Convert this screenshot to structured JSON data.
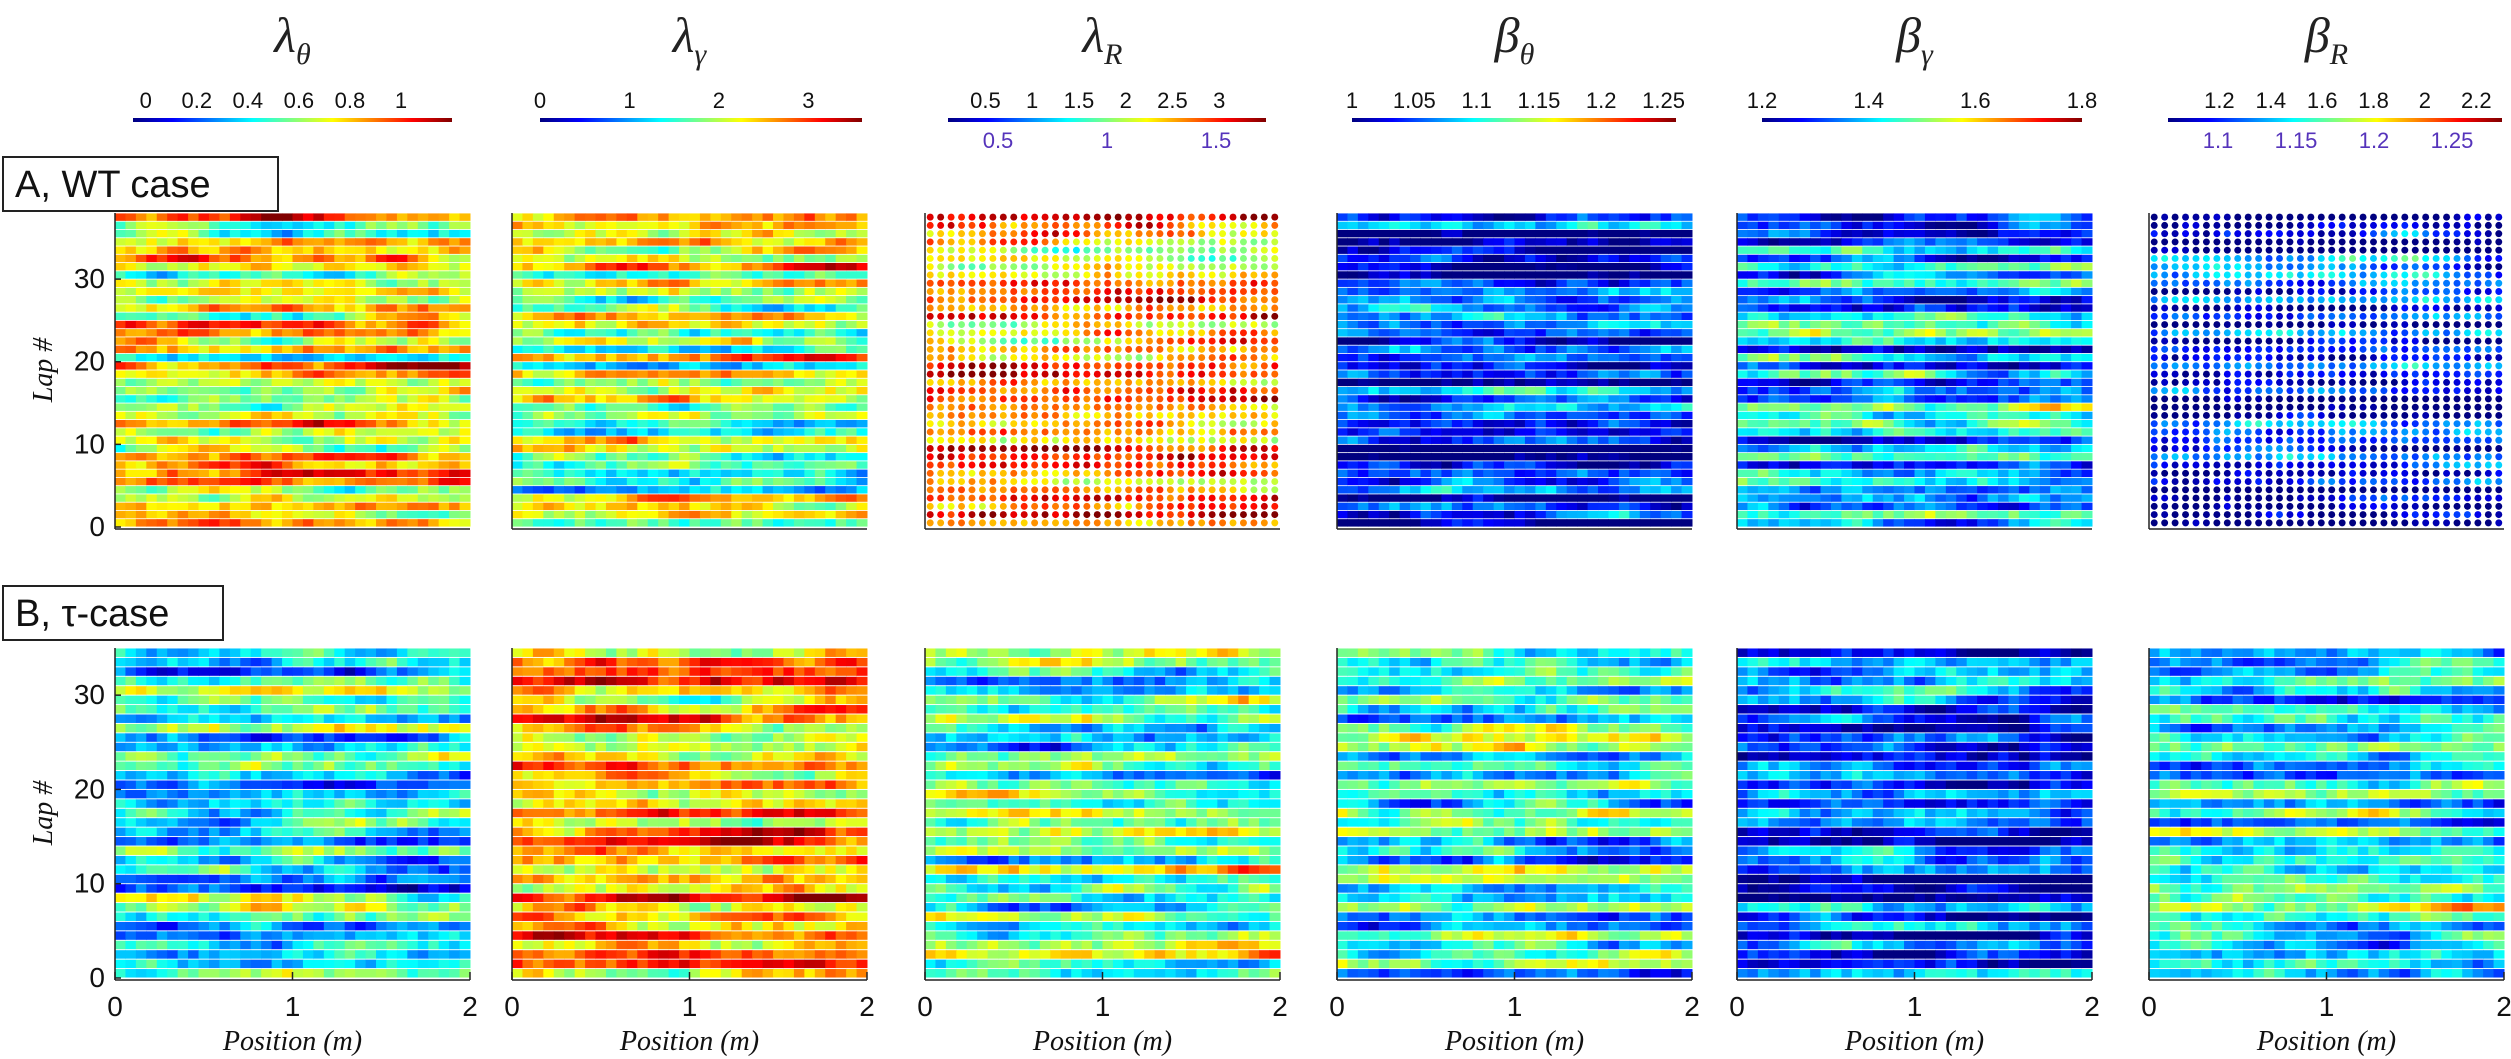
{
  "figure": {
    "row_labels": [
      "A, WT case",
      "B, τ-case"
    ],
    "x_axis_label": "Position (m)",
    "y_axis_label": "Lap #"
  },
  "chart_data": {
    "type": "heatmap",
    "colormap": "jet",
    "x_ticks": [
      "0",
      "1",
      "2"
    ],
    "xlim": [
      0,
      2
    ],
    "columns": [
      {
        "symbol": "λ",
        "subscript": "θ",
        "colorbar_ticks": [
          "0",
          "0.2",
          "0.4",
          "0.6",
          "0.8",
          "1"
        ],
        "colorbar_range": [
          -0.05,
          1.2
        ],
        "colorbar_ticks_secondary": []
      },
      {
        "symbol": "λ",
        "subscript": "γ",
        "colorbar_ticks": [
          "0",
          "1",
          "2",
          "3"
        ],
        "colorbar_range": [
          0,
          3.6
        ],
        "colorbar_ticks_secondary": []
      },
      {
        "symbol": "λ",
        "subscript": "R",
        "colorbar_ticks": [
          "0.5",
          "1",
          "1.5",
          "2",
          "2.5",
          "3"
        ],
        "colorbar_range": [
          0.1,
          3.5
        ],
        "colorbar_ticks_secondary": [
          "0.5",
          "1",
          "1.5"
        ]
      },
      {
        "symbol": "β",
        "subscript": "θ",
        "colorbar_ticks": [
          "1",
          "1.05",
          "1.1",
          "1.15",
          "1.2",
          "1.25"
        ],
        "colorbar_range": [
          1.0,
          1.26
        ],
        "colorbar_ticks_secondary": []
      },
      {
        "symbol": "β",
        "subscript": "γ",
        "colorbar_ticks": [
          "1.2",
          "1.4",
          "1.6",
          "1.8"
        ],
        "colorbar_range": [
          1.2,
          1.8
        ],
        "colorbar_ticks_secondary": []
      },
      {
        "symbol": "β",
        "subscript": "R",
        "colorbar_ticks": [
          "1.2",
          "1.4",
          "1.6",
          "1.8",
          "2",
          "2.2"
        ],
        "colorbar_range": [
          1.0,
          2.3
        ],
        "colorbar_ticks_secondary": [
          "1.1",
          "1.15",
          "1.2",
          "1.25"
        ]
      }
    ],
    "rows": [
      {
        "label": "A, WT case",
        "y_ticks": [
          "0",
          "10",
          "20",
          "30"
        ],
        "ylim": [
          0,
          38
        ],
        "laps": 38,
        "panel_mean_levels": [
          0.62,
          0.52,
          0.72,
          0.12,
          0.28,
          0.12
        ]
      },
      {
        "label": "B, τ-case",
        "y_ticks": [
          "0",
          "10",
          "20",
          "30"
        ],
        "ylim": [
          0,
          35
        ],
        "laps": 35,
        "panel_mean_levels": [
          0.38,
          0.68,
          0.48,
          0.4,
          0.18,
          0.4
        ]
      }
    ],
    "grid": false
  }
}
